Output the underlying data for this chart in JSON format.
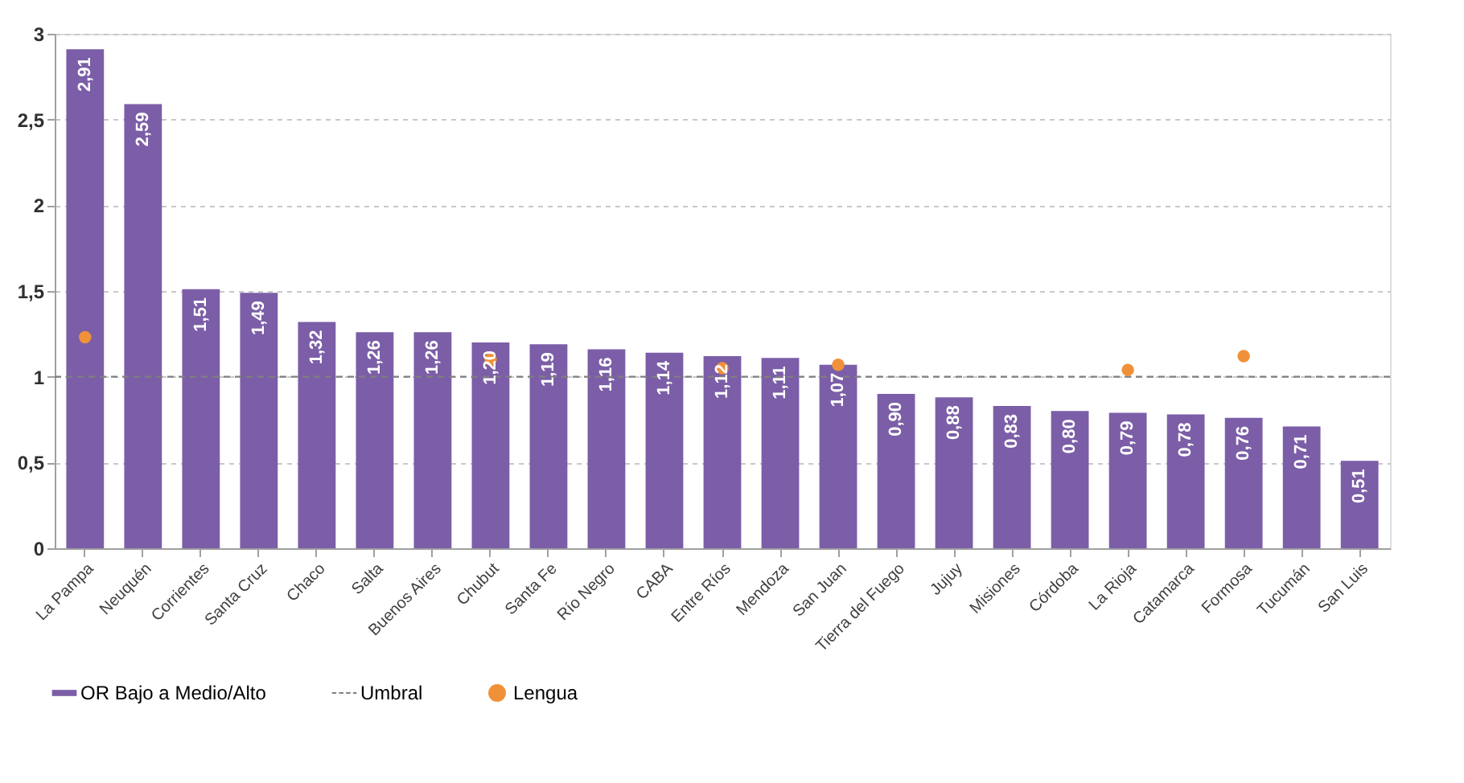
{
  "chart_data": {
    "type": "bar",
    "categories": [
      "La Pampa",
      "Neuquén",
      "Corrientes",
      "Santa Cruz",
      "Chaco",
      "Salta",
      "Buenos Aires",
      "Chubut",
      "Santa Fe",
      "Río Negro",
      "CABA",
      "Entre Ríos",
      "Mendoza",
      "San Juan",
      "Tierra del Fuego",
      "Jujuy",
      "Misiones",
      "Córdoba",
      "La Rioja",
      "Catamarca",
      "Formosa",
      "Tucumán",
      "San Luis"
    ],
    "series": [
      {
        "name": "OR Bajo a Medio/Alto",
        "color": "#7b5ea7",
        "values": [
          2.91,
          2.59,
          1.51,
          1.49,
          1.32,
          1.26,
          1.26,
          1.2,
          1.19,
          1.16,
          1.14,
          1.12,
          1.11,
          1.07,
          0.9,
          0.88,
          0.83,
          0.8,
          0.79,
          0.78,
          0.76,
          0.71,
          0.51
        ],
        "value_labels": [
          "2,91",
          "2,59",
          "1,51",
          "1,49",
          "1,32",
          "1,26",
          "1,26",
          "1,20",
          "1,19",
          "1,16",
          "1,14",
          "1,12",
          "1,11",
          "1,07",
          "0,90",
          "0,88",
          "0,83",
          "0,80",
          "0,79",
          "0,78",
          "0,76",
          "0,71",
          "0,51"
        ]
      },
      {
        "name": "Lengua",
        "type": "scatter",
        "color": "#f0913a",
        "values": [
          1.23,
          null,
          null,
          null,
          null,
          null,
          null,
          1.1,
          null,
          null,
          null,
          1.05,
          null,
          1.07,
          null,
          null,
          null,
          null,
          1.04,
          null,
          1.12,
          null,
          null
        ]
      }
    ],
    "ref_lines": [
      {
        "axis": "y",
        "value": 1,
        "label": "Umbral",
        "color": "#7f7f7f",
        "line_style": "dashed"
      }
    ],
    "ylim": [
      0,
      3
    ],
    "yticks": [
      0,
      {
        "value": 0.5,
        "label": "0,5"
      },
      1,
      {
        "value": 1.5,
        "label": "1,5"
      },
      2,
      {
        "value": 2.5,
        "label": "2,5"
      },
      3
    ],
    "grid": "y",
    "legend": "bottom",
    "marker": "circle"
  }
}
